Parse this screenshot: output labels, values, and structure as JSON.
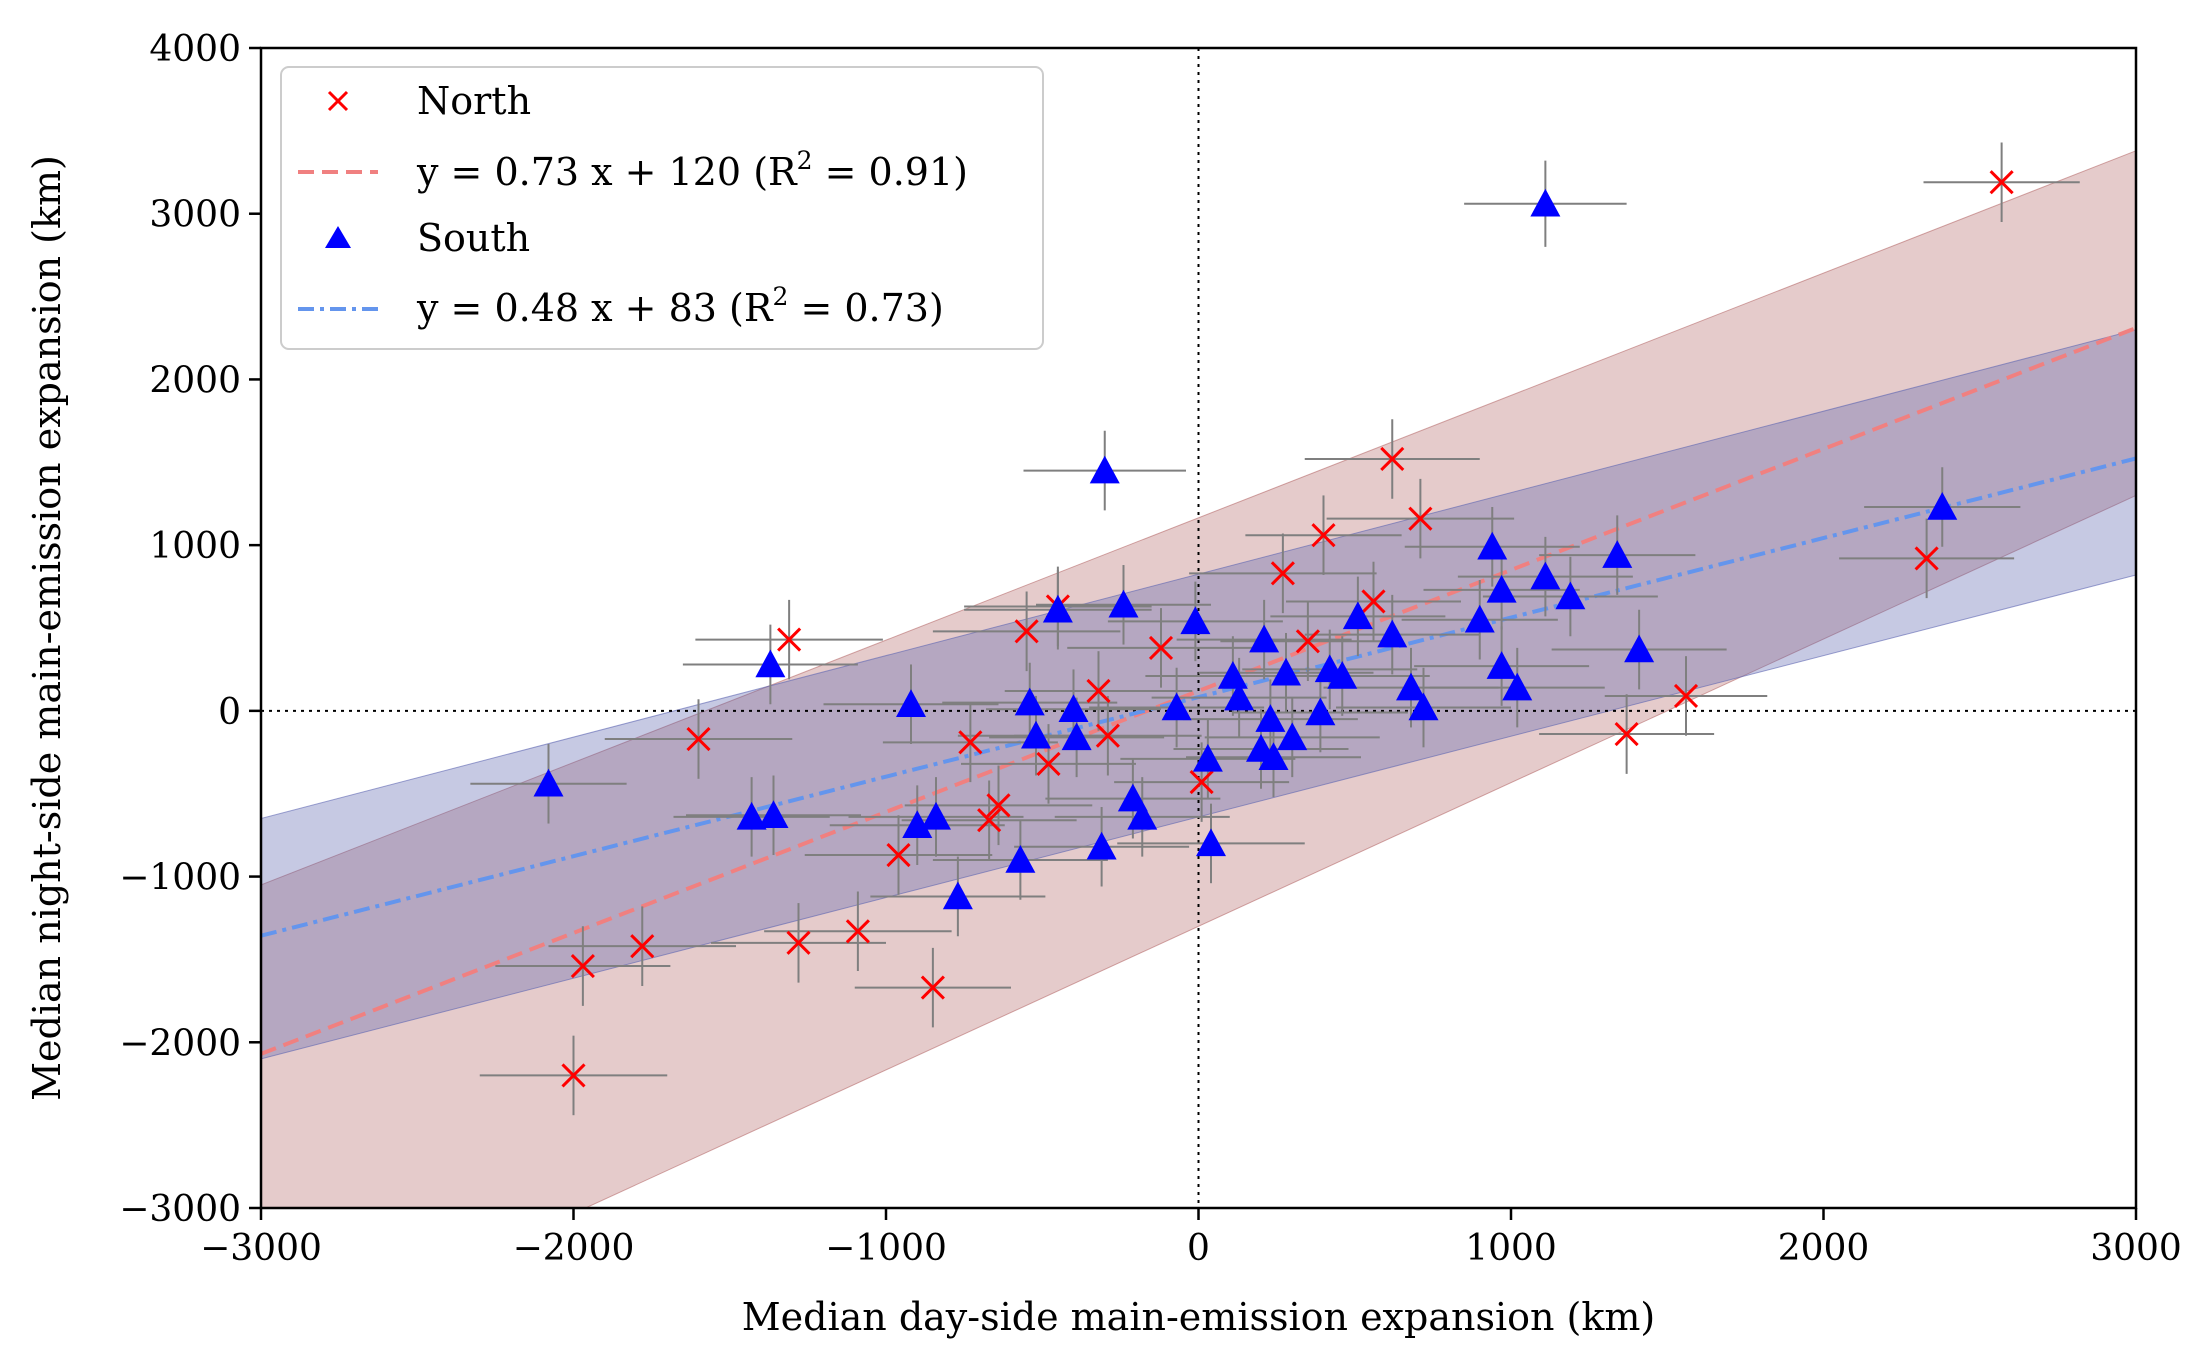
{
  "chart_data": {
    "type": "scatter",
    "xlabel": "Median day-side main-emission expansion (km)",
    "ylabel": "Median night-side main-emission expansion (km)",
    "xlim": [
      -3000,
      3000
    ],
    "ylim": [
      -3000,
      4000
    ],
    "xticks": [
      -3000,
      -2000,
      -1000,
      0,
      1000,
      2000,
      3000
    ],
    "yticks": [
      -3000,
      -2000,
      -1000,
      0,
      1000,
      2000,
      3000,
      4000
    ],
    "xtick_labels": [
      "−3000",
      "−2000",
      "−1000",
      "0",
      "1000",
      "2000",
      "3000"
    ],
    "ytick_labels": [
      "−3000",
      "−2000",
      "−1000",
      "0",
      "1000",
      "2000",
      "3000",
      "4000"
    ],
    "reference_lines": [
      {
        "axis": "x",
        "value": 0
      },
      {
        "axis": "y",
        "value": 0
      }
    ],
    "legend": {
      "location": "upper-left",
      "entries": [
        {
          "label": "North",
          "marker": "x",
          "color": "#ff0000"
        },
        {
          "label": "y = 0.73 x + 120 (R",
          "sup": "2",
          "label_tail": " = 0.91)",
          "line": "dashed",
          "color": "#f08080"
        },
        {
          "label": "South",
          "marker": "triangle",
          "color": "#0000ff"
        },
        {
          "label": "y = 0.48 x + 83 (R",
          "sup": "2",
          "label_tail": " = 0.73)",
          "line": "dashdot",
          "color": "#6495ed"
        }
      ]
    },
    "series": [
      {
        "name": "North",
        "marker": "x",
        "color": "#ff0000",
        "points": [
          {
            "x": -2000,
            "y": -2200,
            "xerr": 300,
            "yerr": 240
          },
          {
            "x": -1970,
            "y": -1540,
            "xerr": 280,
            "yerr": 240
          },
          {
            "x": -1780,
            "y": -1420,
            "xerr": 300,
            "yerr": 240
          },
          {
            "x": -1600,
            "y": -170,
            "xerr": 300,
            "yerr": 240
          },
          {
            "x": -1310,
            "y": 430,
            "xerr": 300,
            "yerr": 240
          },
          {
            "x": -1280,
            "y": -1400,
            "xerr": 280,
            "yerr": 240
          },
          {
            "x": -1090,
            "y": -1330,
            "xerr": 300,
            "yerr": 240
          },
          {
            "x": -960,
            "y": -870,
            "xerr": 300,
            "yerr": 240
          },
          {
            "x": -850,
            "y": -1670,
            "xerr": 250,
            "yerr": 240
          },
          {
            "x": -730,
            "y": -190,
            "xerr": 280,
            "yerr": 240
          },
          {
            "x": -670,
            "y": -660,
            "xerr": 280,
            "yerr": 240
          },
          {
            "x": -640,
            "y": -570,
            "xerr": 300,
            "yerr": 240
          },
          {
            "x": -550,
            "y": 480,
            "xerr": 300,
            "yerr": 240
          },
          {
            "x": -480,
            "y": -320,
            "xerr": 280,
            "yerr": 240
          },
          {
            "x": -450,
            "y": 630,
            "xerr": 300,
            "yerr": 240
          },
          {
            "x": -320,
            "y": 120,
            "xerr": 300,
            "yerr": 240
          },
          {
            "x": -290,
            "y": -150,
            "xerr": 300,
            "yerr": 240
          },
          {
            "x": -120,
            "y": 380,
            "xerr": 300,
            "yerr": 240
          },
          {
            "x": 10,
            "y": -430,
            "xerr": 280,
            "yerr": 240
          },
          {
            "x": 270,
            "y": 830,
            "xerr": 300,
            "yerr": 240
          },
          {
            "x": 350,
            "y": 420,
            "xerr": 280,
            "yerr": 240
          },
          {
            "x": 400,
            "y": 1060,
            "xerr": 250,
            "yerr": 240
          },
          {
            "x": 560,
            "y": 660,
            "xerr": 280,
            "yerr": 240
          },
          {
            "x": 620,
            "y": 1520,
            "xerr": 280,
            "yerr": 240
          },
          {
            "x": 710,
            "y": 1160,
            "xerr": 300,
            "yerr": 240
          },
          {
            "x": 1370,
            "y": -140,
            "xerr": 280,
            "yerr": 240
          },
          {
            "x": 1560,
            "y": 90,
            "xerr": 260,
            "yerr": 240
          },
          {
            "x": 2330,
            "y": 920,
            "xerr": 280,
            "yerr": 240
          },
          {
            "x": 2570,
            "y": 3190,
            "xerr": 250,
            "yerr": 240
          }
        ]
      },
      {
        "name": "South",
        "marker": "triangle",
        "color": "#0000ff",
        "points": [
          {
            "x": -2080,
            "y": -440,
            "xerr": 250,
            "yerr": 240
          },
          {
            "x": -1430,
            "y": -640,
            "xerr": 250,
            "yerr": 240
          },
          {
            "x": -1370,
            "y": 280,
            "xerr": 280,
            "yerr": 240
          },
          {
            "x": -1360,
            "y": -630,
            "xerr": 280,
            "yerr": 240
          },
          {
            "x": -920,
            "y": 40,
            "xerr": 280,
            "yerr": 240
          },
          {
            "x": -900,
            "y": -690,
            "xerr": 280,
            "yerr": 240
          },
          {
            "x": -840,
            "y": -640,
            "xerr": 280,
            "yerr": 240
          },
          {
            "x": -770,
            "y": -1120,
            "xerr": 280,
            "yerr": 240
          },
          {
            "x": -570,
            "y": -900,
            "xerr": 280,
            "yerr": 240
          },
          {
            "x": -540,
            "y": 50,
            "xerr": 280,
            "yerr": 240
          },
          {
            "x": -520,
            "y": -150,
            "xerr": 250,
            "yerr": 240
          },
          {
            "x": -450,
            "y": 610,
            "xerr": 300,
            "yerr": 240
          },
          {
            "x": -400,
            "y": 10,
            "xerr": 280,
            "yerr": 240
          },
          {
            "x": -390,
            "y": -160,
            "xerr": 280,
            "yerr": 240
          },
          {
            "x": -310,
            "y": -820,
            "xerr": 280,
            "yerr": 240
          },
          {
            "x": -300,
            "y": 1450,
            "xerr": 260,
            "yerr": 240
          },
          {
            "x": -240,
            "y": 640,
            "xerr": 280,
            "yerr": 240
          },
          {
            "x": -210,
            "y": -530,
            "xerr": 280,
            "yerr": 240
          },
          {
            "x": -180,
            "y": -640,
            "xerr": 280,
            "yerr": 240
          },
          {
            "x": -70,
            "y": 20,
            "xerr": 280,
            "yerr": 240
          },
          {
            "x": -10,
            "y": 540,
            "xerr": 280,
            "yerr": 240
          },
          {
            "x": 30,
            "y": -290,
            "xerr": 280,
            "yerr": 240
          },
          {
            "x": 40,
            "y": -800,
            "xerr": 300,
            "yerr": 240
          },
          {
            "x": 110,
            "y": 210,
            "xerr": 280,
            "yerr": 240
          },
          {
            "x": 130,
            "y": 80,
            "xerr": 280,
            "yerr": 240
          },
          {
            "x": 200,
            "y": -230,
            "xerr": 280,
            "yerr": 240
          },
          {
            "x": 210,
            "y": 430,
            "xerr": 280,
            "yerr": 240
          },
          {
            "x": 230,
            "y": -50,
            "xerr": 280,
            "yerr": 240
          },
          {
            "x": 240,
            "y": -280,
            "xerr": 280,
            "yerr": 240
          },
          {
            "x": 280,
            "y": 230,
            "xerr": 280,
            "yerr": 240
          },
          {
            "x": 300,
            "y": -160,
            "xerr": 280,
            "yerr": 240
          },
          {
            "x": 390,
            "y": -10,
            "xerr": 280,
            "yerr": 240
          },
          {
            "x": 420,
            "y": 250,
            "xerr": 280,
            "yerr": 240
          },
          {
            "x": 460,
            "y": 210,
            "xerr": 280,
            "yerr": 240
          },
          {
            "x": 510,
            "y": 570,
            "xerr": 280,
            "yerr": 240
          },
          {
            "x": 620,
            "y": 460,
            "xerr": 280,
            "yerr": 240
          },
          {
            "x": 680,
            "y": 140,
            "xerr": 280,
            "yerr": 240
          },
          {
            "x": 720,
            "y": 20,
            "xerr": 280,
            "yerr": 240
          },
          {
            "x": 900,
            "y": 550,
            "xerr": 250,
            "yerr": 240
          },
          {
            "x": 940,
            "y": 990,
            "xerr": 280,
            "yerr": 240
          },
          {
            "x": 970,
            "y": 730,
            "xerr": 250,
            "yerr": 240
          },
          {
            "x": 970,
            "y": 270,
            "xerr": 280,
            "yerr": 240
          },
          {
            "x": 1020,
            "y": 140,
            "xerr": 280,
            "yerr": 240
          },
          {
            "x": 1110,
            "y": 3060,
            "xerr": 260,
            "yerr": 260
          },
          {
            "x": 1110,
            "y": 810,
            "xerr": 280,
            "yerr": 240
          },
          {
            "x": 1190,
            "y": 690,
            "xerr": 280,
            "yerr": 240
          },
          {
            "x": 1340,
            "y": 940,
            "xerr": 250,
            "yerr": 240
          },
          {
            "x": 1410,
            "y": 370,
            "xerr": 280,
            "yerr": 240
          },
          {
            "x": 2380,
            "y": 1230,
            "xerr": 250,
            "yerr": 240
          }
        ]
      }
    ],
    "fits": [
      {
        "name": "North fit",
        "slope": 0.73,
        "intercept": 120,
        "r2": 0.91,
        "style": "dashed",
        "color": "#f08080",
        "band": {
          "at_xmin": [
            -3900,
            -1050
          ],
          "at_xmax": [
            1300,
            3380
          ],
          "fill": "#b56a6a",
          "opacity": 0.35
        }
      },
      {
        "name": "South fit",
        "slope": 0.48,
        "intercept": 83,
        "r2": 0.73,
        "style": "dashdot",
        "color": "#6495ed",
        "band": {
          "at_xmin": [
            -2100,
            -650
          ],
          "at_xmax": [
            820,
            2300
          ],
          "fill": "#5c64b0",
          "opacity": 0.35
        }
      }
    ]
  }
}
